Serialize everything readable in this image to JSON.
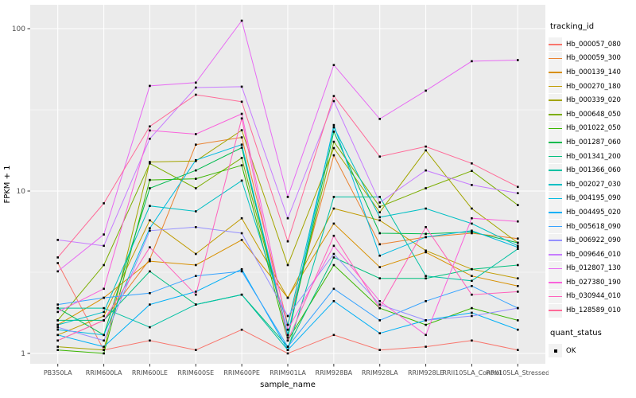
{
  "figure": {
    "xlabel": "sample_name",
    "ylabel": "FPKM + 1"
  },
  "legend": {
    "tracking_title": "tracking_id",
    "quant_title": "quant_status",
    "quant_value": "OK"
  },
  "chart_data": {
    "type": "line",
    "title": "",
    "xlabel": "sample_name",
    "ylabel": "FPKM + 1",
    "y_scale": "log10",
    "ylim": [
      1,
      120
    ],
    "y_ticks": [
      1,
      10,
      100
    ],
    "y_minor_ticks": [
      3.1623,
      31.623
    ],
    "grid": "white major and minor gridlines on gray panel",
    "panel_background": "#EBEBEB",
    "legend_position": "right",
    "point_color": "#000000",
    "point_shape": "filled-square",
    "quant_status_value": "OK",
    "categories": [
      "PB350LA",
      "RRIM600LA",
      "RRIM600LE",
      "RRIM600SE",
      "RRIM600PE",
      "RRIM901LA",
      "RRIM928BA",
      "RRIM928LA",
      "RRIM928LE",
      "RRII105LA_Control",
      "RRII105LA_Stressed"
    ],
    "series": [
      {
        "name": "Hb_000057_080",
        "color": "#F8766D",
        "values": [
          3.6,
          1.05,
          1.2,
          1.05,
          1.4,
          1.0,
          1.3,
          1.05,
          1.1,
          1.2,
          1.05
        ]
      },
      {
        "name": "Hb_000059_300",
        "color": "#EA8331",
        "values": [
          1.2,
          1.6,
          3.8,
          19.3,
          21.4,
          1.5,
          16.6,
          4.7,
          5.2,
          5.5,
          5.1
        ]
      },
      {
        "name": "Hb_000139_140",
        "color": "#D89000",
        "values": [
          1.5,
          2.2,
          3.7,
          3.5,
          5.0,
          2.2,
          6.3,
          3.4,
          4.2,
          3.0,
          2.6
        ]
      },
      {
        "name": "Hb_000270_180",
        "color": "#C09B00",
        "values": [
          1.3,
          1.7,
          6.6,
          4.1,
          6.8,
          2.2,
          7.8,
          6.6,
          4.3,
          3.3,
          2.9
        ]
      },
      {
        "name": "Hb_000339_020",
        "color": "#A3A500",
        "values": [
          1.1,
          1.05,
          15.1,
          15.3,
          23.7,
          3.5,
          18.4,
          7.4,
          17.8,
          7.8,
          4.8
        ]
      },
      {
        "name": "Hb_000648_050",
        "color": "#7CAE00",
        "values": [
          1.6,
          3.5,
          14.8,
          10.4,
          16.0,
          1.3,
          20.1,
          8.0,
          10.4,
          13.3,
          8.2
        ]
      },
      {
        "name": "Hb_001022_050",
        "color": "#39B600",
        "values": [
          1.05,
          1.0,
          11.7,
          11.9,
          14.4,
          1.2,
          3.5,
          1.9,
          1.5,
          1.9,
          1.6
        ]
      },
      {
        "name": "Hb_001287_060",
        "color": "#00BB4E",
        "values": [
          1.9,
          1.3,
          10.4,
          13.4,
          18.5,
          1.25,
          23.2,
          5.5,
          5.45,
          5.6,
          4.8
        ]
      },
      {
        "name": "Hb_001341_200",
        "color": "#00BF7D",
        "values": [
          1.6,
          1.6,
          3.2,
          2.0,
          2.3,
          1.1,
          3.9,
          2.9,
          2.9,
          3.3,
          3.5
        ]
      },
      {
        "name": "Hb_001366_060",
        "color": "#00C1A3",
        "values": [
          1.9,
          1.9,
          1.45,
          2.0,
          2.3,
          1.05,
          9.2,
          9.2,
          3.0,
          2.8,
          4.4
        ]
      },
      {
        "name": "Hb_002027_030",
        "color": "#00BFC4",
        "values": [
          1.5,
          1.8,
          8.1,
          7.5,
          11.6,
          1.5,
          24.7,
          6.9,
          7.8,
          6.3,
          4.6
        ]
      },
      {
        "name": "Hb_004195_090",
        "color": "#00BAE0",
        "values": [
          1.4,
          1.3,
          5.9,
          15.5,
          19.3,
          1.3,
          25.5,
          4.0,
          5.2,
          5.7,
          4.5
        ]
      },
      {
        "name": "Hb_004495_020",
        "color": "#00B0F6",
        "values": [
          1.3,
          1.1,
          2.0,
          2.4,
          3.3,
          1.05,
          2.1,
          1.33,
          1.6,
          1.78,
          1.4
        ]
      },
      {
        "name": "Hb_005618_090",
        "color": "#35A2FF",
        "values": [
          2.0,
          2.2,
          2.35,
          3.0,
          3.2,
          1.1,
          2.5,
          1.6,
          2.1,
          2.6,
          1.9
        ]
      },
      {
        "name": "Hb_006922_090",
        "color": "#9590FF",
        "values": [
          1.45,
          1.2,
          5.7,
          6.0,
          5.5,
          1.7,
          4.1,
          2.0,
          1.6,
          1.7,
          1.9
        ]
      },
      {
        "name": "Hb_009646_010",
        "color": "#C77CFF",
        "values": [
          5.0,
          4.6,
          21.0,
          43.4,
          43.9,
          6.8,
          35.8,
          8.5,
          13.4,
          10.9,
          9.7
        ]
      },
      {
        "name": "Hb_012807_130",
        "color": "#E76BF3",
        "values": [
          3.2,
          5.4,
          44.4,
          46.5,
          112.0,
          9.2,
          59.7,
          27.8,
          41.5,
          63.0,
          64.0
        ]
      },
      {
        "name": "Hb_027380_190",
        "color": "#FA62DB",
        "values": [
          1.8,
          2.5,
          23.6,
          22.4,
          29.9,
          1.4,
          4.6,
          2.1,
          1.3,
          6.8,
          6.5
        ]
      },
      {
        "name": "Hb_030944_010",
        "color": "#FF62BC",
        "values": [
          1.2,
          1.6,
          4.5,
          2.3,
          28.0,
          1.2,
          5.3,
          1.9,
          6.0,
          2.3,
          2.4
        ]
      },
      {
        "name": "Hb_128589_010",
        "color": "#FF6A98",
        "values": [
          3.9,
          8.4,
          25.0,
          39.2,
          35.5,
          4.9,
          38.5,
          16.3,
          18.8,
          14.8,
          10.6
        ]
      }
    ]
  }
}
